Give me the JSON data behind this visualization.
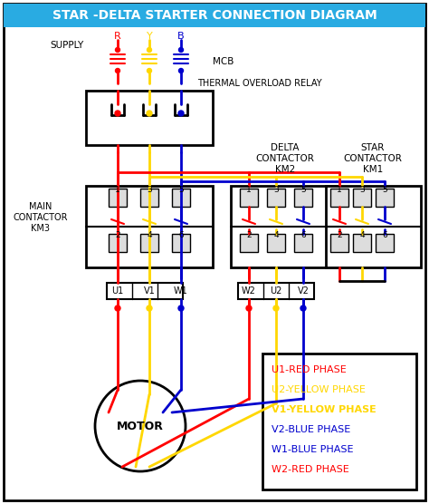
{
  "title": "STAR -DELTA STARTER CONNECTION DIAGRAM",
  "title_bg": "#29ABE2",
  "title_color": "white",
  "bg_color": "white",
  "colors": {
    "red": "#FF0000",
    "yellow": "#FFD700",
    "blue": "#0000CD",
    "black": "#000000"
  },
  "legend_items": [
    {
      "label": "U1-RED PHASE",
      "color": "#FF0000",
      "bold": false
    },
    {
      "label": "U2-YELLOW PHASE",
      "color": "#FFD700",
      "bold": false
    },
    {
      "label": "V1-YELLOW PHASE",
      "color": "#FFD700",
      "bold": true
    },
    {
      "label": "V2-BLUE PHASE",
      "color": "#0000CD",
      "bold": false
    },
    {
      "label": "W1-BLUE PHASE",
      "color": "#0000CD",
      "bold": false
    },
    {
      "label": "W2-RED PHASE",
      "color": "#FF0000",
      "bold": false
    }
  ]
}
